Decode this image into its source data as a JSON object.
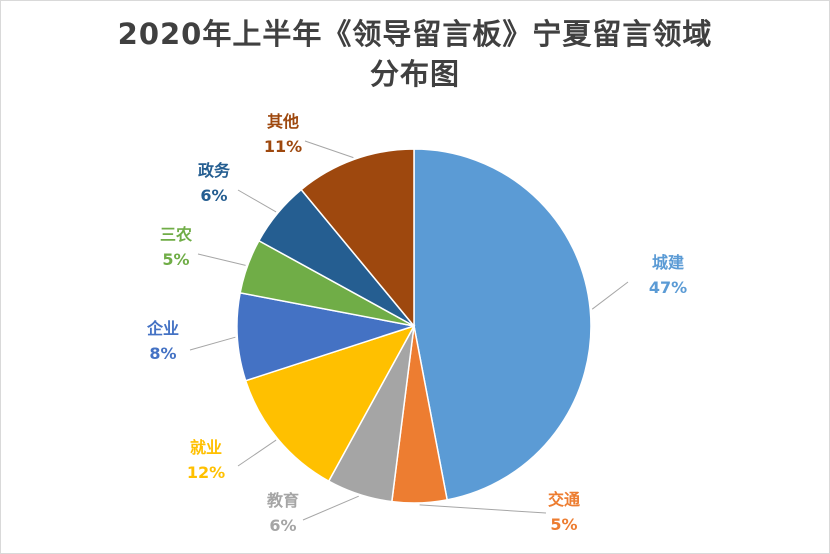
{
  "chart_data": {
    "type": "pie",
    "title_line1": "2020年上半年《领导留言板》宁夏留言领域",
    "title_line2": "分布图",
    "slices": [
      {
        "label": "城建",
        "value": 47,
        "percent_text": "47%",
        "color": "#5B9BD5"
      },
      {
        "label": "交通",
        "value": 5,
        "percent_text": "5%",
        "color": "#ED7D31"
      },
      {
        "label": "教育",
        "value": 6,
        "percent_text": "6%",
        "color": "#A5A5A5"
      },
      {
        "label": "就业",
        "value": 12,
        "percent_text": "12%",
        "color": "#FFC000"
      },
      {
        "label": "企业",
        "value": 8,
        "percent_text": "8%",
        "color": "#4472C4"
      },
      {
        "label": "三农",
        "value": 5,
        "percent_text": "5%",
        "color": "#70AD47"
      },
      {
        "label": "政务",
        "value": 6,
        "percent_text": "6%",
        "color": "#255E91"
      },
      {
        "label": "其他",
        "value": 11,
        "percent_text": "11%",
        "color": "#9E480E"
      }
    ],
    "legend": "none",
    "data_labels": "outside with leader lines",
    "label_text_colors": [
      "#5B9BD5",
      "#ED7D31",
      "#A5A5A5",
      "#FFC000",
      "#4472C4",
      "#70AD47",
      "#255E91",
      "#9E480E"
    ]
  }
}
